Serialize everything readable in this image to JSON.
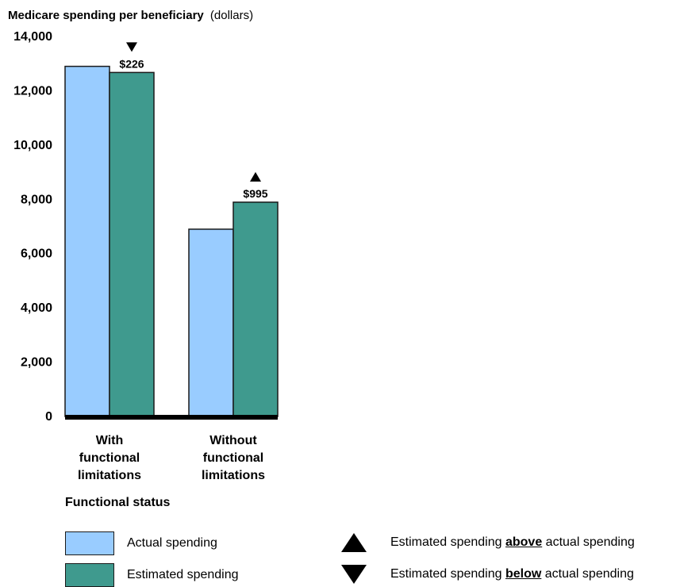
{
  "chart_data": {
    "type": "bar",
    "title": "Medicare spending per beneficiary",
    "title_unit": "(dollars)",
    "xlabel": "Functional status",
    "ylabel": "",
    "ylim": [
      0,
      14000
    ],
    "yticks": [
      0,
      2000,
      4000,
      6000,
      8000,
      10000,
      12000,
      14000
    ],
    "ytick_labels": [
      "0",
      "2,000",
      "4,000",
      "6,000",
      "8,000",
      "10,000",
      "12,000",
      "14,000"
    ],
    "categories": [
      [
        "With",
        "functional",
        "limitations"
      ],
      [
        "Without",
        "functional",
        "limitations"
      ]
    ],
    "series": [
      {
        "name": "Actual spending",
        "color": "#99ccff",
        "values": [
          12900,
          6900
        ]
      },
      {
        "name": "Estimated spending",
        "color": "#3f9a8e",
        "values": [
          12674,
          7895
        ]
      }
    ],
    "annotations": [
      {
        "category_index": 0,
        "series_index": 1,
        "direction": "down",
        "label": "$226"
      },
      {
        "category_index": 1,
        "series_index": 1,
        "direction": "up",
        "label": "$995"
      }
    ],
    "grid": false
  },
  "legend": {
    "items": [
      {
        "kind": "swatch",
        "color": "#99ccff",
        "label": "Actual spending"
      },
      {
        "kind": "swatch",
        "color": "#3f9a8e",
        "label": "Estimated spending"
      }
    ],
    "markers": [
      {
        "icon": "triangle-up-icon",
        "prefix": "Estimated spending ",
        "emphasis": "above",
        "suffix": " actual spending"
      },
      {
        "icon": "triangle-down-icon",
        "prefix": "Estimated spending ",
        "emphasis": "below",
        "suffix": " actual spending"
      }
    ]
  }
}
